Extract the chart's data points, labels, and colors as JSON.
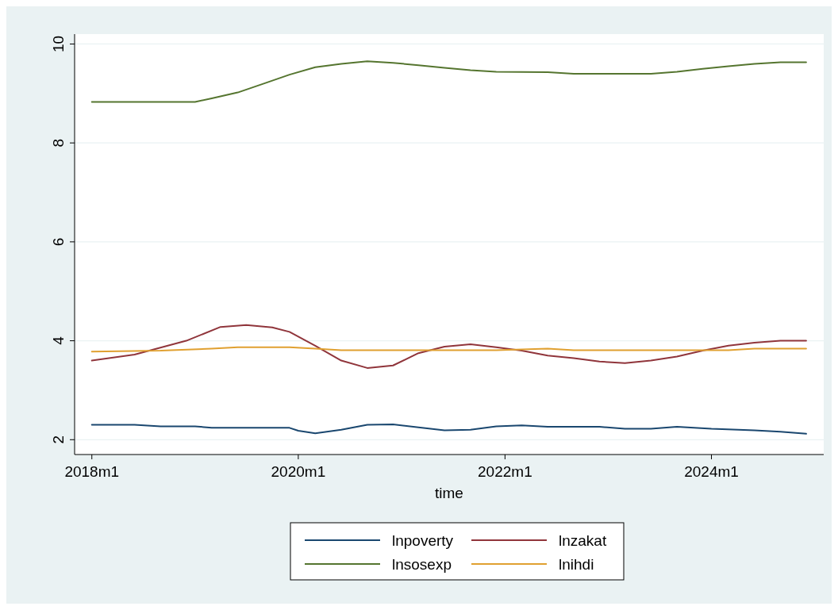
{
  "chart_data": {
    "type": "line",
    "xlabel": "time",
    "xlim": [
      "2017-11",
      "2025-02"
    ],
    "ylim": [
      1.7,
      10.2
    ],
    "xticks": [
      {
        "value": "2018-01",
        "label": "2018m1"
      },
      {
        "value": "2020-01",
        "label": "2020m1"
      },
      {
        "value": "2022-01",
        "label": "2022m1"
      },
      {
        "value": "2024-01",
        "label": "2024m1"
      }
    ],
    "yticks": [
      2,
      4,
      6,
      8,
      10
    ],
    "grid": "y",
    "legend": "bottom",
    "line_style": "solid",
    "marker": "none",
    "series": [
      {
        "name": "lnpoverty",
        "color": "#1a476f",
        "x": [
          "2018-01",
          "2018-06",
          "2018-09",
          "2019-01",
          "2019-03",
          "2019-12",
          "2020-01",
          "2020-03",
          "2020-06",
          "2020-09",
          "2020-12",
          "2021-03",
          "2021-06",
          "2021-09",
          "2021-12",
          "2022-03",
          "2022-06",
          "2022-12",
          "2023-03",
          "2023-06",
          "2023-09",
          "2024-01",
          "2024-06",
          "2024-09",
          "2024-12"
        ],
        "values": [
          2.3,
          2.3,
          2.27,
          2.27,
          2.24,
          2.24,
          2.18,
          2.13,
          2.2,
          2.3,
          2.31,
          2.25,
          2.19,
          2.2,
          2.27,
          2.29,
          2.26,
          2.26,
          2.22,
          2.22,
          2.26,
          2.22,
          2.19,
          2.16,
          2.12
        ]
      },
      {
        "name": "lnzakat",
        "color": "#90353b",
        "x": [
          "2018-01",
          "2018-06",
          "2018-12",
          "2019-04",
          "2019-07",
          "2019-10",
          "2019-12",
          "2020-03",
          "2020-06",
          "2020-09",
          "2020-12",
          "2021-03",
          "2021-06",
          "2021-09",
          "2021-12",
          "2022-03",
          "2022-06",
          "2022-09",
          "2022-12",
          "2023-03",
          "2023-06",
          "2023-09",
          "2023-12",
          "2024-03",
          "2024-06",
          "2024-09",
          "2024-12"
        ],
        "values": [
          3.6,
          3.72,
          4.0,
          4.28,
          4.32,
          4.27,
          4.18,
          3.9,
          3.6,
          3.45,
          3.5,
          3.75,
          3.88,
          3.93,
          3.87,
          3.8,
          3.7,
          3.65,
          3.58,
          3.55,
          3.6,
          3.68,
          3.8,
          3.9,
          3.96,
          4.0,
          4.0
        ]
      },
      {
        "name": "lnsosexp",
        "color": "#55752f",
        "x": [
          "2018-01",
          "2019-01",
          "2019-03",
          "2019-06",
          "2019-09",
          "2019-12",
          "2020-03",
          "2020-06",
          "2020-09",
          "2020-12",
          "2021-03",
          "2021-06",
          "2021-09",
          "2021-12",
          "2022-06",
          "2022-09",
          "2023-06",
          "2023-09",
          "2023-12",
          "2024-03",
          "2024-06",
          "2024-09",
          "2024-12"
        ],
        "values": [
          8.83,
          8.83,
          8.9,
          9.02,
          9.2,
          9.38,
          9.53,
          9.6,
          9.65,
          9.62,
          9.57,
          9.52,
          9.47,
          9.44,
          9.43,
          9.4,
          9.4,
          9.44,
          9.5,
          9.55,
          9.6,
          9.63,
          9.63
        ]
      },
      {
        "name": "lnihdi",
        "color": "#e0a030",
        "x": [
          "2018-01",
          "2018-09",
          "2019-03",
          "2019-06",
          "2019-12",
          "2020-03",
          "2020-06",
          "2021-12",
          "2022-06",
          "2022-09",
          "2024-03",
          "2024-06",
          "2024-12"
        ],
        "values": [
          3.78,
          3.8,
          3.84,
          3.87,
          3.87,
          3.84,
          3.81,
          3.81,
          3.84,
          3.81,
          3.81,
          3.84,
          3.84
        ]
      }
    ]
  }
}
